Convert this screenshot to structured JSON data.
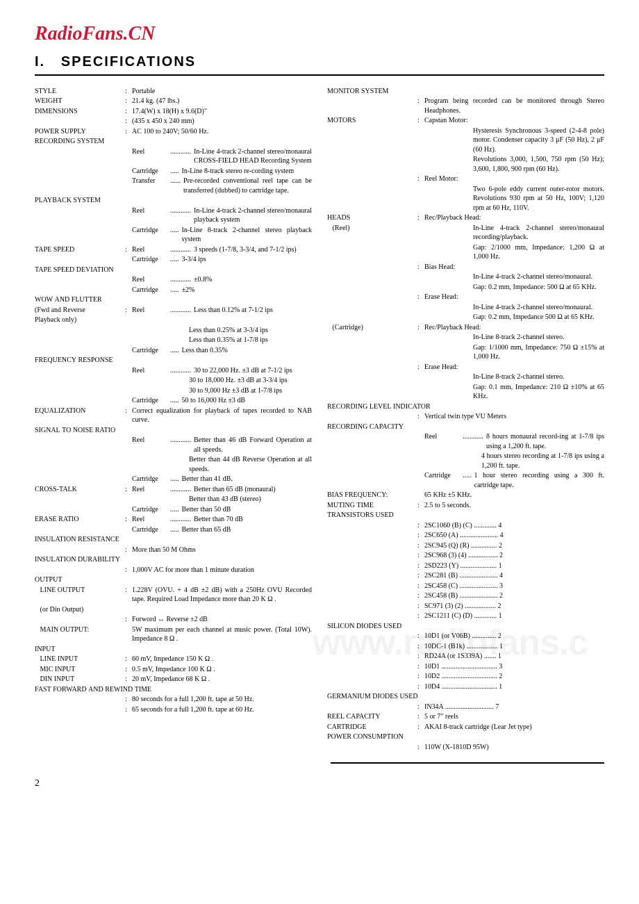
{
  "brand": "RadioFans.CN",
  "sectionNumber": "I.",
  "sectionTitle": "SPECIFICATIONS",
  "watermark": "www.radiofans.c",
  "pageNumber": "2",
  "leftCol": [
    {
      "label": "STYLE",
      "val": "Portable"
    },
    {
      "label": "WEIGHT",
      "val": "21.4 kg. (47 lbs.)"
    },
    {
      "label": "DIMENSIONS",
      "val": "17.4(W) x 18(H) x 9.6(D)\""
    },
    {
      "label": "",
      "val": "(435 x 450 x 240 mm)"
    },
    {
      "label": "POWER SUPPLY",
      "val": "AC 100 to 240V;  50/60 Hz."
    },
    {
      "label": "RECORDING SYSTEM",
      "val": ""
    },
    {
      "label": "",
      "sub": "Reel",
      "dots": "............",
      "val": "In-Line 4-track 2-channel stereo/monaural CROSS-FIELD HEAD Recording System"
    },
    {
      "label": "",
      "sub": "Cartridge",
      "dots": ".....",
      "val": "In-Line 8-track stereo re-cording system"
    },
    {
      "label": "",
      "sub": "Transfer",
      "dots": "......",
      "val": "Pre-recorded conventional reel tape can be transferred (dubbed) to cartridge tape."
    },
    {
      "label": "PLAYBACK SYSTEM",
      "val": ""
    },
    {
      "label": "",
      "sub": "Reel",
      "dots": "............",
      "val": "In-Line 4-track 2-channel stereo/monaural playback system"
    },
    {
      "label": "",
      "sub": "Cartridge",
      "dots": ".....",
      "val": "In-Line 8-track 2-channel stereo playback system"
    },
    {
      "label": "TAPE SPEED",
      "sub": "Reel",
      "dots": "............",
      "val": "3 speeds (1-7/8, 3-3/4, and 7-1/2 ips)"
    },
    {
      "label": "",
      "sub": "Cartridge",
      "dots": ".....",
      "val": "3-3/4 ips"
    },
    {
      "label": "TAPE SPEED DEVIATION",
      "val": ""
    },
    {
      "label": "",
      "sub": "Reel",
      "dots": "............",
      "val": "±0.8%"
    },
    {
      "label": "",
      "sub": "Cartridge",
      "dots": ".....",
      "val": "±2%"
    },
    {
      "label": "WOW AND FLUTTER",
      "val": ""
    },
    {
      "label": "(Fwd and Reverse",
      "sub": "Reel",
      "dots": "............",
      "val": "Less than 0.12% at 7-1/2 ips"
    },
    {
      "label": "Playback only)",
      "val": ""
    },
    {
      "label": "",
      "val": "Less than 0.25% at 3-3/4 ips",
      "indent": "indent2"
    },
    {
      "label": "",
      "val": "Less than 0.35% at 1-7/8 ips",
      "indent": "indent2"
    },
    {
      "label": "",
      "sub": "Cartridge",
      "dots": ".....",
      "val": "Less than 0.35%"
    },
    {
      "label": "FREQUENCY RESPONSE",
      "val": ""
    },
    {
      "label": "",
      "sub": "Reel",
      "dots": "............",
      "val": "30 to 22,000 Hz. ±3 dB at 7-1/2 ips"
    },
    {
      "label": "",
      "val": "30 to 18,000 Hz. ±3 dB at 3-3/4 ips",
      "indent": "indent2"
    },
    {
      "label": "",
      "val": "30 to 9,000 Hz ±3 dB at 1-7/8 ips",
      "indent": "indent2"
    },
    {
      "label": "",
      "sub": "Cartridge",
      "dots": ".....",
      "val": "50 to 16,000 Hz ±3 dB"
    },
    {
      "label": "EQUALIZATION",
      "val": "Correct equalization for playback of tapes recorded to NAB curve."
    },
    {
      "label": "SIGNAL TO NOISE RATIO",
      "val": ""
    },
    {
      "label": "",
      "sub": "Reel",
      "dots": "............",
      "val": "Better than 46 dB Forward Operation at all speeds."
    },
    {
      "label": "",
      "val": "Better than 44 dB Reverse Operation at all speeds.",
      "indent": "indent2"
    },
    {
      "label": "",
      "sub": "Cartridge",
      "dots": ".....",
      "val": "Better than 41 dB."
    },
    {
      "label": "CROSS-TALK",
      "sub": "Reel",
      "dots": "............",
      "val": "Better than 65 dB (monaural)"
    },
    {
      "label": "",
      "val": "Better than 43 dB (stereo)",
      "indent": "indent2"
    },
    {
      "label": "",
      "sub": "Cartridge",
      "dots": ".....",
      "val": "Better than 50 dB"
    },
    {
      "label": "ERASE RATIO",
      "sub": "Reel",
      "dots": "............",
      "val": "Better than 70 dB"
    },
    {
      "label": "",
      "sub": "Cartridge",
      "dots": ".....",
      "val": "Better than 65 dB"
    },
    {
      "label": "INSULATION RESISTANCE",
      "val": ""
    },
    {
      "label": "",
      "val": "More than 50 M Ohms"
    },
    {
      "label": "INSULATION DURABILITY",
      "val": ""
    },
    {
      "label": "",
      "val": "1,000V AC for more than 1 minute duration"
    },
    {
      "label": "OUTPUT",
      "val": ""
    },
    {
      "label": "   LINE OUTPUT",
      "val": "1.228V (OVU. + 4 dB ±2 dB) with a 250Hz OVU Recorded tape. Required Load Impedance more than 20 K Ω ."
    },
    {
      "label": "   (or Din Output)",
      "val": ""
    },
    {
      "label": "",
      "val": "Forword ↔ Reverse ±2 dB"
    },
    {
      "label": "   MAIN OUTPUT:",
      "val": "5W maximum per each channel at music power. (Total 10W). Impedance 8 Ω .",
      "noColon": true
    },
    {
      "label": "INPUT",
      "val": ""
    },
    {
      "label": "   LINE INPUT",
      "val": "60 mV, Impedance 150 K Ω ."
    },
    {
      "label": "   MIC INPUT",
      "val": "0.5 mV, Impedance 100 K Ω ."
    },
    {
      "label": "   DIN INPUT",
      "val": "20 mV, Impedance 68 K Ω ."
    },
    {
      "label": "FAST FORWARD AND REWIND TIME",
      "val": ""
    },
    {
      "label": "",
      "val": "80 seconds for a full 1,200 ft. tape at 50 Hz."
    },
    {
      "label": "",
      "val": "65 seconds for a full 1,200 ft. tape at 60 Hz."
    }
  ],
  "rightCol": [
    {
      "label": "MONITOR SYSTEM",
      "val": ""
    },
    {
      "label": "",
      "val": "Program being recorded can be monitored through Stereo Headphones."
    },
    {
      "label": "MOTORS",
      "val": "Capstan Motor:"
    },
    {
      "label": "",
      "val": "Hysteresis Synchronous 3-speed (2-4-8 pole) motor. Condenser capacity 3 μF (50 Hz), 2 μF (60 Hz).",
      "indent": "indent1"
    },
    {
      "label": "",
      "val": "Revolutions 3,000, 1,500, 750 rpm (50 Hz); 3,600, 1,800, 900 rpm (60 Hz).",
      "indent": "indent1"
    },
    {
      "label": "",
      "val": "Reel Motor:"
    },
    {
      "label": "",
      "val": "Two 6-pole eddy current outer-rotor motors. Revolutions 930 rpm at 50 Hz, 100V; 1,120 rpm at 60 Hz, 110V.",
      "indent": "indent1"
    },
    {
      "label": "HEADS",
      "val": "Rec/Playback Head:"
    },
    {
      "label": "   (Reel)",
      "val": "In-Line 4-track 2-channel stereo/monaural recording/playback.",
      "noColon": true,
      "indent": "indent1"
    },
    {
      "label": "",
      "val": "Gap: 2/1000 mm, Impedance: 1,200 Ω at 1,000 Hz.",
      "indent": "indent1"
    },
    {
      "label": "",
      "val": "Bias Head:"
    },
    {
      "label": "",
      "val": "In-Line 4-track 2-channel stereo/monaural.",
      "indent": "indent1"
    },
    {
      "label": "",
      "val": "Gap: 0.2 mm, Impedance: 500 Ω at 65 KHz.",
      "indent": "indent1"
    },
    {
      "label": "",
      "val": "Erase Head:"
    },
    {
      "label": "",
      "val": "In-Line 4-track 2-channel stereo/monaural.",
      "indent": "indent1"
    },
    {
      "label": "",
      "val": "Gap: 0.2 mm, Impedance 500 Ω at 65 KHz.",
      "indent": "indent1"
    },
    {
      "label": "   (Cartridge)",
      "val": "Rec/Playback Head:"
    },
    {
      "label": "",
      "val": "In-Line 8-track 2-channel stereo.",
      "indent": "indent1"
    },
    {
      "label": "",
      "val": "Gap: 1/1000 mm, Impedance: 750 Ω ±15% at 1,000 Hz.",
      "indent": "indent1"
    },
    {
      "label": "",
      "val": "Erase Head:"
    },
    {
      "label": "",
      "val": "In-Line 8-track 2-channel stereo.",
      "indent": "indent1"
    },
    {
      "label": "",
      "val": "Gap: 0.1 mm, Impedance: 210 Ω ±10% at 65 KHz.",
      "indent": "indent1"
    },
    {
      "label": "RECORDING LEVEL INDICATOR",
      "val": ""
    },
    {
      "label": "",
      "val": "Vertical twin type VU Meters"
    },
    {
      "label": "RECORDING CAPACITY",
      "val": ""
    },
    {
      "label": "",
      "sub": "Reel",
      "dots": "............",
      "val": "8 hours monaural record-ing at 1-7/8 ips using a 1,200 ft. tape."
    },
    {
      "label": "",
      "val": "4 hours stereo recording at 1-7/8 ips using a 1,200 ft. tape.",
      "indent": "indent2"
    },
    {
      "label": "",
      "sub": "Cartridge",
      "dots": ".....",
      "val": "1 hour stereo recording using a 300 ft. cartridge tape."
    },
    {
      "label": "BIAS FREQUENCY:",
      "val": "65 KHz ±5 KHz.",
      "noColon": true
    },
    {
      "label": "MUTING TIME",
      "val": "2.5 to 5 seconds."
    },
    {
      "label": "TRANSISTORS USED",
      "val": ""
    },
    {
      "label": "",
      "val": "2SC1060 (B) (C) ............. 4"
    },
    {
      "label": "",
      "val": "2SC650 (A) ...................... 4"
    },
    {
      "label": "",
      "val": "2SC945 (Q) (R) ............... 2"
    },
    {
      "label": "",
      "val": "2SC968 (3) (4) ................. 2"
    },
    {
      "label": "",
      "val": "2SD223 (Y) ..................... 1"
    },
    {
      "label": "",
      "val": "2SC281 (B) ...................... 4"
    },
    {
      "label": "",
      "val": "2SC458 (C) ...................... 3"
    },
    {
      "label": "",
      "val": "2SC458 (B) ...................... 2"
    },
    {
      "label": "",
      "val": "SC971 (3) (2) .................. 2"
    },
    {
      "label": "",
      "val": "2SC1211 (C) (D) ............. 1"
    },
    {
      "label": "SILICON DIODES USED",
      "val": ""
    },
    {
      "label": "",
      "val": "10D1 (or V06B) .............. 2"
    },
    {
      "label": "",
      "val": "10DC-1 (B1k) .................. 1"
    },
    {
      "label": "",
      "val": "RD24A (or 1S339A) ....... 1"
    },
    {
      "label": "",
      "val": "10D1 ................................ 3"
    },
    {
      "label": "",
      "val": "10D2 ................................ 2"
    },
    {
      "label": "",
      "val": "10D4 ................................ 1"
    },
    {
      "label": "GERMANIUM DIODES USED",
      "val": ""
    },
    {
      "label": "",
      "val": "IN34A ............................ 7"
    },
    {
      "label": "REEL CAPACITY",
      "val": "5 or 7\" reels"
    },
    {
      "label": "CARTRIDGE",
      "val": "AKAI 8-track cartridge (Lear Jet type)"
    },
    {
      "label": "POWER CONSUMPTION",
      "val": ""
    },
    {
      "label": "",
      "val": "110W (X-1810D  95W)"
    }
  ]
}
